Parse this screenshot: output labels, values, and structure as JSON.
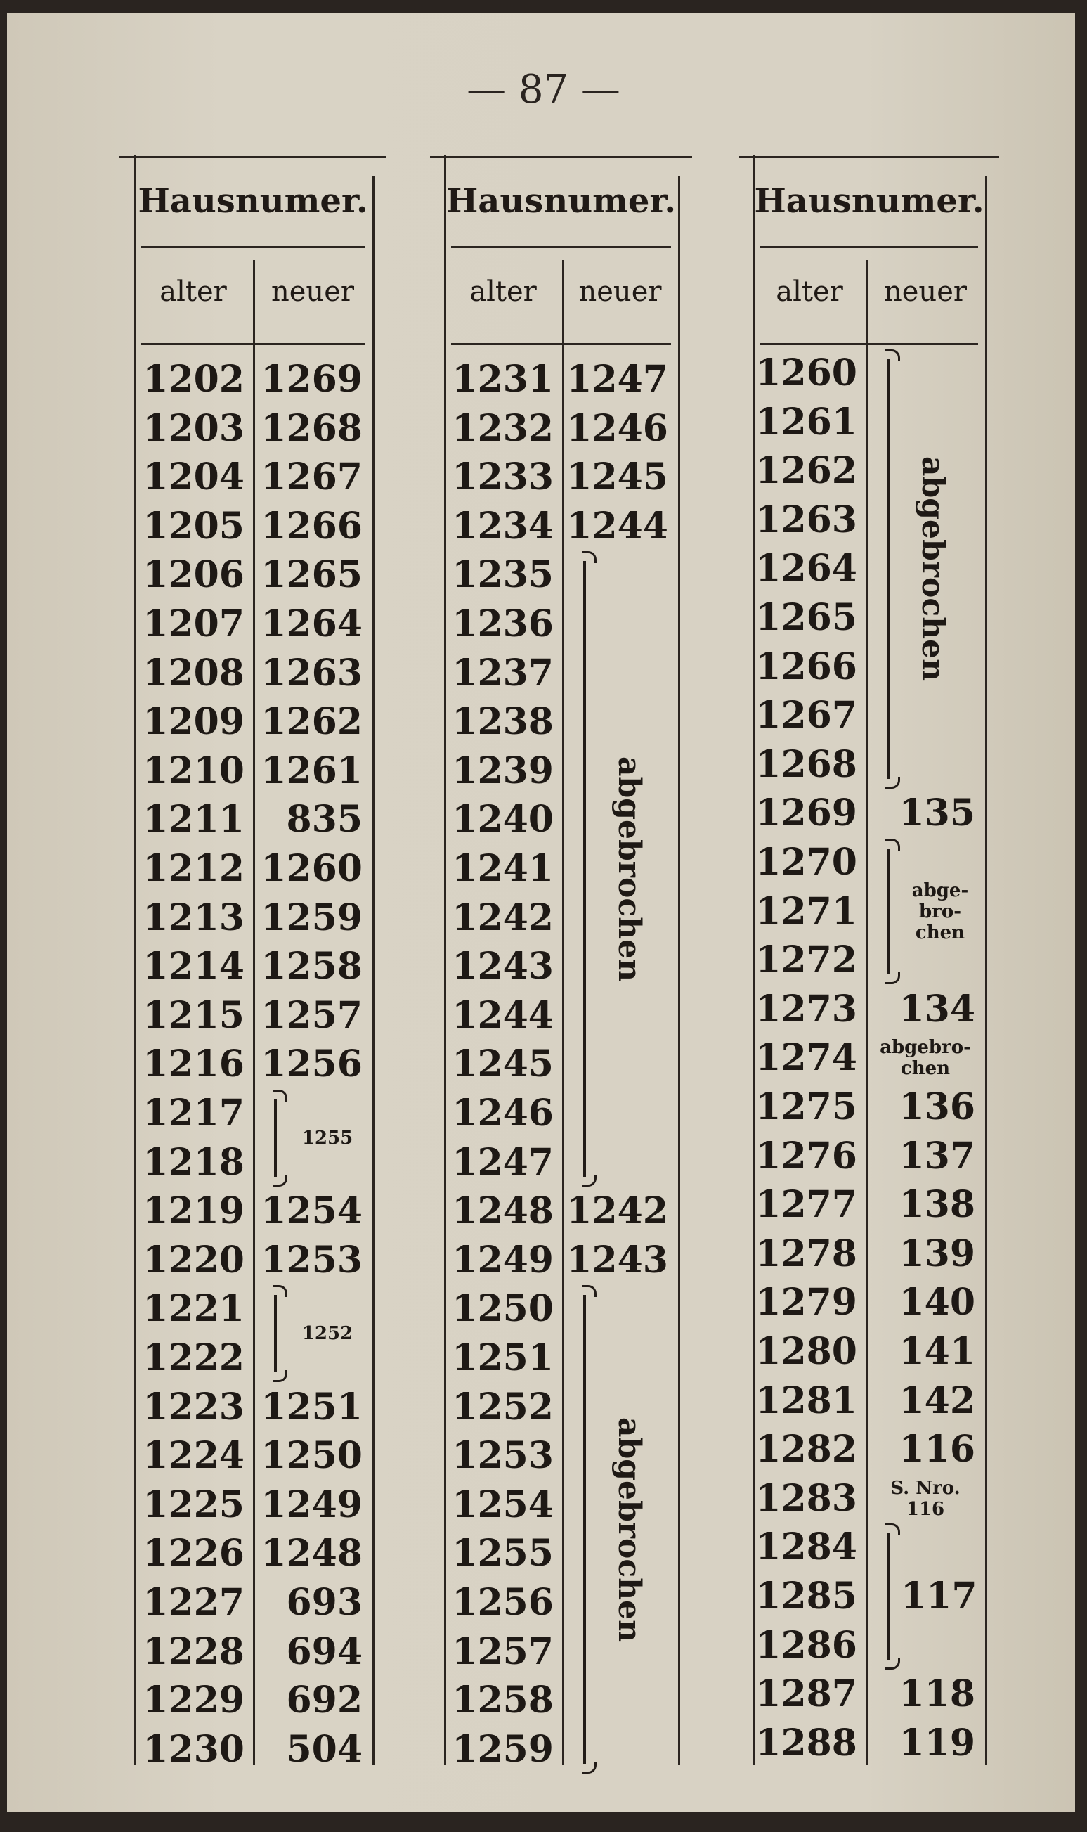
{
  "page_number": "— 87 —",
  "columns": [
    {
      "header": "Hausnumer.",
      "sub_old": "alter",
      "sub_new": "neuer",
      "rows": [
        {
          "alt": "1202",
          "neu": "1269"
        },
        {
          "alt": "1203",
          "neu": "1268"
        },
        {
          "alt": "1204",
          "neu": "1267"
        },
        {
          "alt": "1205",
          "neu": "1266"
        },
        {
          "alt": "1206",
          "neu": "1265"
        },
        {
          "alt": "1207",
          "neu": "1264"
        },
        {
          "alt": "1208",
          "neu": "1263"
        },
        {
          "alt": "1209",
          "neu": "1262"
        },
        {
          "alt": "1210",
          "neu": "1261"
        },
        {
          "alt": "1211",
          "neu": "835"
        },
        {
          "alt": "1212",
          "neu": "1260"
        },
        {
          "alt": "1213",
          "neu": "1259"
        },
        {
          "alt": "1214",
          "neu": "1258"
        },
        {
          "alt": "1215",
          "neu": "1257"
        },
        {
          "alt": "1216",
          "neu": "1256"
        },
        {
          "alt": "1217",
          "neu": ""
        },
        {
          "alt": "1218",
          "neu": ""
        },
        {
          "alt": "1219",
          "neu": "1254"
        },
        {
          "alt": "1220",
          "neu": "1253"
        },
        {
          "alt": "1221",
          "neu": ""
        },
        {
          "alt": "1222",
          "neu": ""
        },
        {
          "alt": "1223",
          "neu": "1251"
        },
        {
          "alt": "1224",
          "neu": "1250"
        },
        {
          "alt": "1225",
          "neu": "1249"
        },
        {
          "alt": "1226",
          "neu": "1248"
        },
        {
          "alt": "1227",
          "neu": "693"
        },
        {
          "alt": "1228",
          "neu": "694"
        },
        {
          "alt": "1229",
          "neu": "692"
        },
        {
          "alt": "1230",
          "neu": "504"
        }
      ],
      "groups": [
        {
          "from": 15,
          "to": 16,
          "label": "1255",
          "style": "small"
        },
        {
          "from": 19,
          "to": 20,
          "label": "1252",
          "style": "small"
        }
      ]
    },
    {
      "header": "Hausnumer.",
      "sub_old": "alter",
      "sub_new": "neuer",
      "rows": [
        {
          "alt": "1231",
          "neu": "1247"
        },
        {
          "alt": "1232",
          "neu": "1246"
        },
        {
          "alt": "1233",
          "neu": "1245"
        },
        {
          "alt": "1234",
          "neu": "1244"
        },
        {
          "alt": "1235",
          "neu": ""
        },
        {
          "alt": "1236",
          "neu": ""
        },
        {
          "alt": "1237",
          "neu": ""
        },
        {
          "alt": "1238",
          "neu": ""
        },
        {
          "alt": "1239",
          "neu": ""
        },
        {
          "alt": "1240",
          "neu": ""
        },
        {
          "alt": "1241",
          "neu": ""
        },
        {
          "alt": "1242",
          "neu": ""
        },
        {
          "alt": "1243",
          "neu": ""
        },
        {
          "alt": "1244",
          "neu": ""
        },
        {
          "alt": "1245",
          "neu": ""
        },
        {
          "alt": "1246",
          "neu": ""
        },
        {
          "alt": "1247",
          "neu": ""
        },
        {
          "alt": "1248",
          "neu": "1242"
        },
        {
          "alt": "1249",
          "neu": "1243"
        },
        {
          "alt": "1250",
          "neu": ""
        },
        {
          "alt": "1251",
          "neu": ""
        },
        {
          "alt": "1252",
          "neu": ""
        },
        {
          "alt": "1253",
          "neu": ""
        },
        {
          "alt": "1254",
          "neu": ""
        },
        {
          "alt": "1255",
          "neu": ""
        },
        {
          "alt": "1256",
          "neu": ""
        },
        {
          "alt": "1257",
          "neu": ""
        },
        {
          "alt": "1258",
          "neu": ""
        },
        {
          "alt": "1259",
          "neu": ""
        }
      ],
      "groups": [
        {
          "from": 4,
          "to": 16,
          "label": "abgebrochen",
          "style": "vertical"
        },
        {
          "from": 19,
          "to": 28,
          "label": "abgebrochen",
          "style": "vertical"
        }
      ]
    },
    {
      "header": "Hausnumer.",
      "sub_old": "alter",
      "sub_new": "neuer",
      "rows": [
        {
          "alt": "1260",
          "neu": ""
        },
        {
          "alt": "1261",
          "neu": ""
        },
        {
          "alt": "1262",
          "neu": ""
        },
        {
          "alt": "1263",
          "neu": ""
        },
        {
          "alt": "1264",
          "neu": ""
        },
        {
          "alt": "1265",
          "neu": ""
        },
        {
          "alt": "1266",
          "neu": ""
        },
        {
          "alt": "1267",
          "neu": ""
        },
        {
          "alt": "1268",
          "neu": ""
        },
        {
          "alt": "1269",
          "neu": "135"
        },
        {
          "alt": "1270",
          "neu": ""
        },
        {
          "alt": "1271",
          "neu": ""
        },
        {
          "alt": "1272",
          "neu": ""
        },
        {
          "alt": "1273",
          "neu": "134"
        },
        {
          "alt": "1274",
          "neu": "",
          "note": "abgebro-\nchen"
        },
        {
          "alt": "1275",
          "neu": "136"
        },
        {
          "alt": "1276",
          "neu": "137"
        },
        {
          "alt": "1277",
          "neu": "138"
        },
        {
          "alt": "1278",
          "neu": "139"
        },
        {
          "alt": "1279",
          "neu": "140"
        },
        {
          "alt": "1280",
          "neu": "141"
        },
        {
          "alt": "1281",
          "neu": "142"
        },
        {
          "alt": "1282",
          "neu": "116"
        },
        {
          "alt": "1283",
          "neu": "",
          "note": "S. Nro.\n116"
        },
        {
          "alt": "1284",
          "neu": ""
        },
        {
          "alt": "1285",
          "neu": ""
        },
        {
          "alt": "1286",
          "neu": ""
        },
        {
          "alt": "1287",
          "neu": "118"
        },
        {
          "alt": "1288",
          "neu": "119"
        }
      ],
      "groups": [
        {
          "from": 0,
          "to": 8,
          "label": "abgebrochen",
          "style": "vertical"
        },
        {
          "from": 10,
          "to": 12,
          "label": "abge-\nbro-\nchen",
          "style": "small"
        },
        {
          "from": 24,
          "to": 26,
          "label": "117",
          "style": "number"
        }
      ]
    }
  ]
}
